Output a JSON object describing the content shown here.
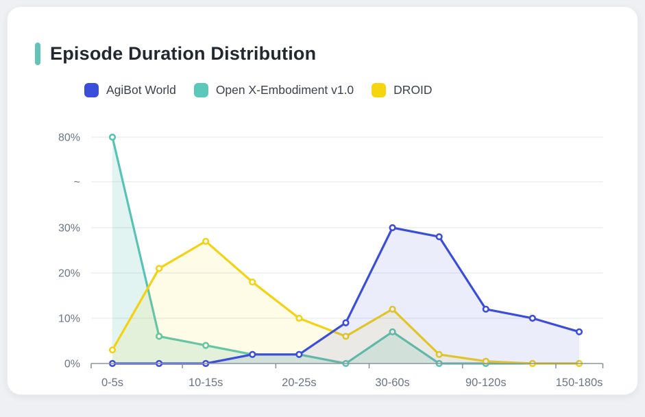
{
  "title": "Episode Duration Distribution",
  "legend": [
    {
      "label": "AgiBot World",
      "color": "#3B4DDB"
    },
    {
      "label": "Open X-Embodiment v1.0",
      "color": "#5CC8BA"
    },
    {
      "label": "DROID",
      "color": "#F5D410"
    }
  ],
  "chart_data": {
    "type": "line",
    "title": "Episode Duration Distribution",
    "categories": [
      "0-5s",
      "",
      "10-15s",
      "",
      "20-25s",
      "",
      "30-60s",
      "",
      "90-120s",
      "",
      "150-180s"
    ],
    "series": [
      {
        "name": "AgiBot World",
        "color": "#3B4DDB",
        "area_fill": "rgba(59,77,219,0.10)",
        "values": [
          0,
          0,
          0,
          2,
          2,
          9,
          30,
          28,
          12,
          10,
          7
        ]
      },
      {
        "name": "Open X-Embodiment v1.0",
        "color": "#56C3B4",
        "area_fill": "rgba(86,195,180,0.18)",
        "values": [
          80,
          6,
          4,
          2,
          2,
          0,
          7,
          0,
          0,
          0,
          0
        ]
      },
      {
        "name": "DROID",
        "color": "#F2D313",
        "area_fill": "rgba(242,211,19,0.10)",
        "values": [
          3,
          21,
          27,
          18,
          10,
          6,
          12,
          2,
          0.5,
          0,
          0
        ]
      }
    ],
    "draw_order": [
      1,
      2,
      0
    ],
    "y_axis": {
      "ticks": [
        {
          "label": "0%",
          "value": 0
        },
        {
          "label": "10%",
          "value": 10
        },
        {
          "label": "20%",
          "value": 20
        },
        {
          "label": "30%",
          "value": 30
        },
        {
          "label": "~",
          "value": "break"
        },
        {
          "label": "80%",
          "value": 80
        }
      ],
      "break_between": [
        30,
        80
      ]
    },
    "xlabel": "",
    "ylabel": "",
    "grid": true,
    "legend_position": "top",
    "marker": "hollow-circle"
  },
  "colors": {
    "accent_bar": "#62C3B6",
    "axis_line": "#8D939E",
    "grid_line": "#E8EAEE",
    "axis_text": "#6B7585"
  }
}
